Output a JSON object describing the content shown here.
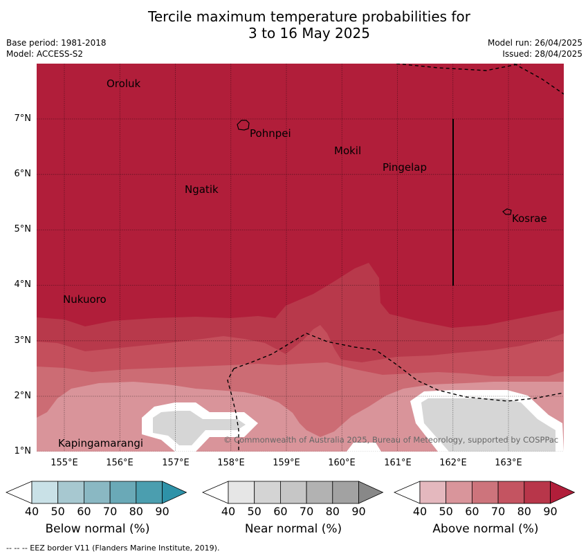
{
  "title": {
    "line1": "Tercile maximum temperature probabilities for",
    "line2": "3 to 16 May 2025"
  },
  "meta": {
    "base_period": "Base period: 1981-2018",
    "model": "Model: ACCESS-S2",
    "model_run": "Model run: 26/04/2025",
    "issued": "Issued: 28/04/2025"
  },
  "map": {
    "lat_labels": [
      "7°N",
      "6°N",
      "5°N",
      "4°N",
      "3°N",
      "2°N",
      "1°N"
    ],
    "lon_labels": [
      "155°E",
      "156°E",
      "157°E",
      "158°E",
      "159°E",
      "160°E",
      "161°E",
      "162°E",
      "163°E"
    ],
    "places": {
      "oroluk": "Oroluk",
      "pohnpei": "Pohnpei",
      "mokil": "Mokil",
      "pingelap": "Pingelap",
      "ngatik": "Ngatik",
      "kosrae": "Kosrae",
      "nukuoro": "Nukuoro",
      "kapingamarangi": "Kapingamarangi"
    },
    "copyright": "© Commonwealth of Australia 2025, Bureau of Meteorology, supported by COSPPac",
    "colors": {
      "above_80": "#b11e3a",
      "above_70": "#b8394b",
      "above_60": "#c44f5c",
      "above_50": "#cc6c74",
      "above_40": "#d9949a",
      "near_50": "#d6d6d6",
      "white": "#ffffff"
    }
  },
  "colorbars": {
    "ticks": [
      "40",
      "50",
      "60",
      "70",
      "80",
      "90"
    ],
    "below": {
      "label": "Below normal (%)",
      "colors": [
        "#ffffff",
        "#c9e1e7",
        "#a7c8d0",
        "#8ab8c3",
        "#6aa9b7",
        "#4b9eaf",
        "#2e92a8"
      ]
    },
    "near": {
      "label": "Near normal (%)",
      "colors": [
        "#ffffff",
        "#e6e6e6",
        "#d4d4d4",
        "#c6c6c6",
        "#b2b2b2",
        "#a2a2a2",
        "#888888"
      ]
    },
    "above": {
      "label": "Above normal (%)",
      "colors": [
        "#ffffff",
        "#e4b8be",
        "#d9959b",
        "#cd747c",
        "#c45461",
        "#b8364a",
        "#b11e3a"
      ]
    }
  },
  "footer": "--  --  -- EEZ border V11 (Flanders Marine Institute, 2019)."
}
